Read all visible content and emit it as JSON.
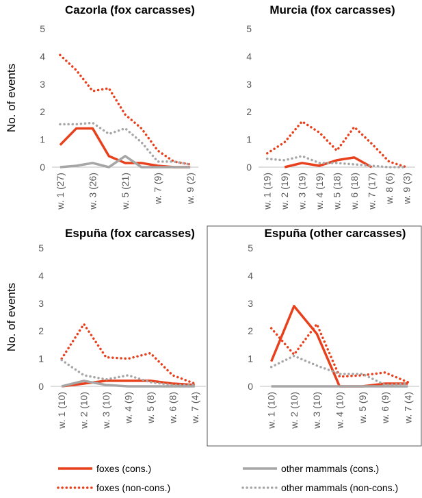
{
  "chart_data": [
    {
      "type": "line",
      "title": "Cazorla (fox carcasses)",
      "ylabel": "No. of events",
      "categories": [
        "w. 1 (27)",
        null,
        "w. 3 (26)",
        null,
        "w. 5 (21)",
        null,
        "w. 7 (9)",
        null,
        "w. 9 (2)"
      ],
      "ylim": [
        0,
        5
      ],
      "yticks": [
        0,
        1,
        2,
        3,
        4,
        5
      ],
      "series": [
        {
          "name": "foxes (cons.)",
          "color": "#e8401c",
          "dash": "solid",
          "values": [
            0.8,
            1.4,
            1.4,
            0.4,
            0.15,
            0.15,
            0.05,
            0,
            0
          ]
        },
        {
          "name": "foxes (non-cons.)",
          "color": "#e8401c",
          "dash": "dotted",
          "values": [
            4.05,
            3.5,
            2.75,
            2.85,
            1.9,
            1.4,
            0.6,
            0.2,
            0.1
          ]
        },
        {
          "name": "other mammals (cons.)",
          "color": "#a6a6a6",
          "dash": "solid",
          "values": [
            0,
            0.05,
            0.15,
            0,
            0.4,
            0,
            0,
            0,
            0
          ]
        },
        {
          "name": "other mammals (non-cons.)",
          "color": "#a6a6a6",
          "dash": "dotted",
          "values": [
            1.55,
            1.55,
            1.6,
            1.2,
            1.4,
            0.9,
            0.2,
            0.2,
            0.1
          ]
        }
      ]
    },
    {
      "type": "line",
      "title": "Murcia (fox carcasses)",
      "categories": [
        "w. 1 (19)",
        "w. 2 (19)",
        "w. 3 (19)",
        "w. 4 (19)",
        "w. 5 (18)",
        "w. 6 (18)",
        "w. 7 (17)",
        "w. 8 (6)",
        "w. 9 (3)"
      ],
      "ylim": [
        0,
        5
      ],
      "yticks": [
        0,
        1,
        2,
        3,
        4,
        5
      ],
      "series": [
        {
          "name": "foxes (cons.)",
          "color": "#e8401c",
          "dash": "solid",
          "values": [
            null,
            0,
            0.15,
            0.05,
            0.25,
            0.35,
            0,
            null,
            null
          ]
        },
        {
          "name": "foxes (non-cons.)",
          "color": "#e8401c",
          "dash": "dotted",
          "values": [
            0.5,
            0.9,
            1.65,
            1.25,
            0.6,
            1.45,
            0.85,
            0.2,
            0
          ]
        },
        {
          "name": "other mammals (non-cons.)",
          "color": "#a6a6a6",
          "dash": "dotted",
          "values": [
            0.3,
            0.25,
            0.4,
            0.15,
            0.15,
            0.1,
            0.05,
            0,
            0
          ]
        }
      ]
    },
    {
      "type": "line",
      "title": "Espuña (fox carcasses)",
      "ylabel": "No. of events",
      "categories": [
        "w. 1 (10)",
        "w. 2 (10)",
        "w. 3 (10)",
        "w. 4 (9)",
        "w. 5 (8)",
        "w. 6 (8)",
        "w. 7 (4)"
      ],
      "ylim": [
        0,
        5
      ],
      "yticks": [
        0,
        1,
        2,
        3,
        4,
        5
      ],
      "series": [
        {
          "name": "foxes (cons.)",
          "color": "#e8401c",
          "dash": "solid",
          "values": [
            0,
            0.1,
            0.2,
            0.2,
            0.2,
            0.1,
            0.05
          ]
        },
        {
          "name": "foxes (non-cons.)",
          "color": "#e8401c",
          "dash": "dotted",
          "values": [
            1,
            2.25,
            1.05,
            1,
            1.2,
            0.4,
            0.1
          ]
        },
        {
          "name": "other mammals (cons.)",
          "color": "#a6a6a6",
          "dash": "solid",
          "values": [
            0,
            0.2,
            0.05,
            0,
            0,
            0,
            0
          ]
        },
        {
          "name": "other mammals (non-cons.)",
          "color": "#a6a6a6",
          "dash": "dotted",
          "values": [
            0.95,
            0.4,
            0.25,
            0.4,
            0.15,
            0.05,
            0.05
          ]
        }
      ]
    },
    {
      "type": "line",
      "title": "Espuña (other carcasses)",
      "categories": [
        "w. 1 (10)",
        "w. 2 (10)",
        "w. 3 (10)",
        "w. 4 (10)",
        "w. 5 (9)",
        "w. 6 (9)",
        "w. 7 (4)"
      ],
      "ylim": [
        0,
        5
      ],
      "yticks": [
        0,
        1,
        2,
        3,
        4,
        5
      ],
      "series": [
        {
          "name": "foxes (cons.)",
          "color": "#e8401c",
          "dash": "solid",
          "values": [
            0.9,
            2.9,
            1.9,
            0,
            0,
            0.1,
            0.1
          ]
        },
        {
          "name": "foxes (non-cons.)",
          "color": "#e8401c",
          "dash": "dotted",
          "values": [
            2.1,
            1.15,
            2.25,
            0.35,
            0.4,
            0.5,
            0.15
          ]
        },
        {
          "name": "other mammals (cons.)",
          "color": "#a6a6a6",
          "dash": "solid",
          "values": [
            0,
            0,
            0,
            0,
            0,
            0,
            0
          ]
        },
        {
          "name": "other mammals (non-cons.)",
          "color": "#a6a6a6",
          "dash": "dotted",
          "values": [
            0.7,
            1.1,
            0.75,
            0.45,
            0.45,
            0.05,
            0.1
          ]
        }
      ]
    }
  ]
}
